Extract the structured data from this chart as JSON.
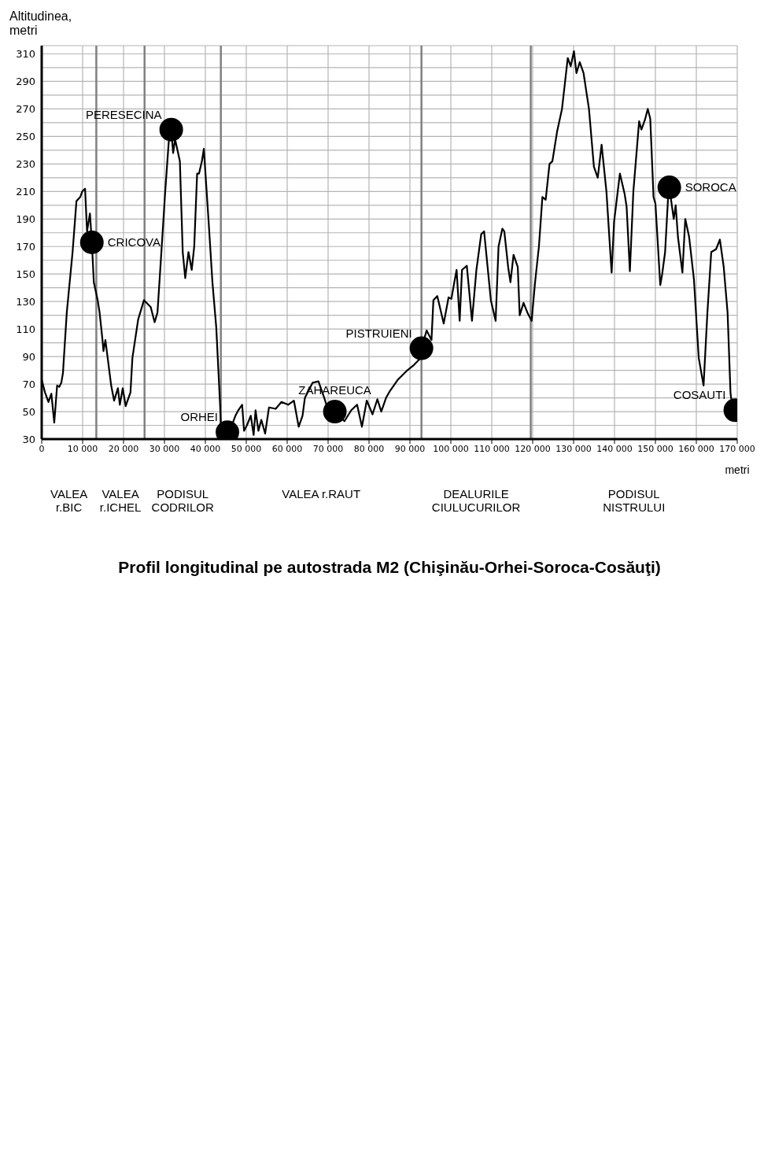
{
  "chart_data": {
    "type": "line",
    "title": "Profil longitudinal pe autostrada M2 (Chişinău-Orhei-Soroca-Cosăuţi)",
    "xlabel": "metri",
    "ylabel": "Altitudinea, metri",
    "xlim": [
      0,
      170000
    ],
    "xticks": [
      0,
      {
        "value": 10000,
        "label": "10 000"
      },
      {
        "value": 20000,
        "label": "20 000"
      },
      {
        "value": 30000,
        "label": "30 000"
      },
      {
        "value": 40000,
        "label": "40 000"
      },
      {
        "value": 50000,
        "label": "50 000"
      },
      {
        "value": 60000,
        "label": "60 000"
      },
      {
        "value": 70000,
        "label": "70 000"
      },
      {
        "value": 80000,
        "label": "80 000"
      },
      {
        "value": 90000,
        "label": "90 000"
      },
      {
        "value": 100000,
        "label": "100 000"
      },
      {
        "value": 110000,
        "label": "110 000"
      },
      {
        "value": 120000,
        "label": "120 000"
      },
      {
        "value": 130000,
        "label": "130 000"
      },
      {
        "value": 140000,
        "label": "140 000"
      },
      {
        "value": 150000,
        "label": "150 000"
      },
      {
        "value": 160000,
        "label": "160 000"
      },
      {
        "value": 170000,
        "label": "170 000"
      }
    ],
    "ylim": [
      30,
      316
    ],
    "yticks": [
      30,
      {
        "value": 40,
        "label": null
      },
      50,
      {
        "value": 60,
        "label": null
      },
      70,
      {
        "value": 80,
        "label": null
      },
      90,
      {
        "value": 100,
        "label": null
      },
      110,
      {
        "value": 120,
        "label": null
      },
      130,
      {
        "value": 140,
        "label": null
      },
      150,
      {
        "value": 160,
        "label": null
      },
      170,
      {
        "value": 180,
        "label": null
      },
      190,
      {
        "value": 200,
        "label": null
      },
      210,
      {
        "value": 220,
        "label": null
      },
      230,
      {
        "value": 240,
        "label": null
      },
      250,
      {
        "value": 260,
        "label": null
      },
      270,
      {
        "value": 280,
        "label": null
      },
      290,
      {
        "value": 300,
        "label": null
      },
      310
    ],
    "grid": true,
    "marker": "none",
    "line_style": "solid",
    "series": [
      {
        "color": "#000000",
        "x": [
          0,
          800,
          1650,
          2360,
          3070,
          3770,
          4300,
          4800,
          5190,
          6130,
          7550,
          8490,
          9430,
          9900,
          10600,
          11080,
          11790,
          12260,
          12740,
          13680,
          14150,
          14860,
          15100,
          15570,
          16980,
          17690,
          18630,
          19100,
          19810,
          20520,
          21700,
          22170,
          23580,
          25000,
          26650,
          27600,
          28300,
          29250,
          30190,
          31050,
          31660,
          32130,
          32600,
          33770,
          34470,
          35080,
          35880,
          36670,
          37280,
          37990,
          38450,
          39160,
          39630,
          40800,
          41730,
          42670,
          43600,
          43840,
          45390,
          45950,
          47350,
          48060,
          48990,
          49460,
          50160,
          51100,
          51800,
          52270,
          52970,
          53680,
          54610,
          55550,
          57190,
          58600,
          60230,
          61640,
          62810,
          63750,
          64330,
          66220,
          67640,
          69060,
          70000,
          71650,
          74000,
          75670,
          77090,
          78270,
          79450,
          80860,
          82050,
          82990,
          84170,
          85120,
          87000,
          89370,
          91020,
          92670,
          92820,
          94090,
          95270,
          95740,
          96690,
          98260,
          99440,
          100140,
          100850,
          101410,
          102160,
          102730,
          103900,
          105170,
          106250,
          107430,
          108130,
          109780,
          110950,
          111660,
          112600,
          113070,
          114010,
          114570,
          115330,
          116360,
          116830,
          117770,
          118710,
          119750,
          120590,
          121530,
          122380,
          123180,
          124120,
          124820,
          126000,
          127170,
          128580,
          129290,
          130090,
          130700,
          131500,
          132440,
          133760,
          134970,
          135910,
          136850,
          138030,
          138970,
          139300,
          139900,
          141320,
          142490,
          142960,
          143760,
          144610,
          146020,
          146580,
          147430,
          148130,
          148740,
          149540,
          150010,
          151190,
          151660,
          152370,
          153070,
          153400,
          154480,
          154950,
          155510,
          156600,
          157300,
          158240,
          159420,
          160590,
          161770,
          162710,
          163650,
          164820,
          165760,
          166700,
          167640,
          168350,
          168490,
          169530
        ],
        "values": [
          73,
          64,
          57,
          63,
          42,
          69,
          68,
          71,
          78,
          122,
          166,
          203,
          206,
          210,
          212,
          181,
          194,
          173,
          144,
          131,
          122,
          102,
          94,
          102,
          69,
          58,
          67,
          55,
          67,
          54,
          64,
          89,
          117,
          131,
          126,
          115,
          122,
          166,
          210,
          246,
          255,
          238,
          248,
          232,
          166,
          147,
          166,
          153,
          170,
          223,
          223,
          232,
          241,
          188,
          144,
          111,
          55,
          36,
          35,
          36,
          47,
          51,
          55,
          36,
          40,
          47,
          33,
          51,
          36,
          44,
          34,
          53,
          52,
          57,
          55,
          58,
          39,
          47,
          60,
          71,
          72,
          60,
          51,
          50,
          43,
          51,
          55,
          39,
          58,
          48,
          59,
          50,
          60,
          65,
          73,
          80,
          84,
          89,
          96,
          109,
          102,
          131,
          134,
          114,
          133,
          132,
          144,
          153,
          116,
          153,
          156,
          116,
          153,
          179,
          181,
          131,
          116,
          170,
          183,
          181,
          155,
          144,
          164,
          155,
          120,
          129,
          122,
          116,
          144,
          170,
          206,
          204,
          230,
          232,
          254,
          270,
          307,
          301,
          312,
          296,
          304,
          296,
          270,
          228,
          220,
          244,
          210,
          166,
          151,
          188,
          223,
          208,
          199,
          152,
          210,
          261,
          255,
          262,
          270,
          263,
          206,
          201,
          142,
          150,
          166,
          204,
          213,
          190,
          200,
          177,
          151,
          190,
          177,
          146,
          89,
          69,
          122,
          166,
          168,
          175,
          155,
          122,
          64,
          60,
          51
        ]
      },
      {
        "type": "scatter",
        "color": "#000000",
        "marker": "circle",
        "x": [
          12260,
          31660,
          45390,
          71650,
          92820,
          153400,
          169530
        ],
        "values": [
          173,
          255,
          35,
          50,
          96,
          213,
          51
        ]
      }
    ],
    "ref_lines": [
      {
        "axis": "x",
        "value": 13350,
        "color": "#808080"
      },
      {
        "axis": "x",
        "value": 25140,
        "color": "#808080"
      },
      {
        "axis": "x",
        "value": 43790,
        "color": "#808080"
      },
      {
        "axis": "x",
        "value": 92820,
        "color": "#808080"
      },
      {
        "axis": "x",
        "value": 119530,
        "color": "#808080"
      }
    ],
    "annotations": [
      {
        "text": "CRICOVA",
        "x": 12260,
        "y": 173
      },
      {
        "text": "PERESECINA",
        "x": 31660,
        "y": 255
      },
      {
        "text": "ORHEI",
        "x": 45390,
        "y": 35
      },
      {
        "text": "ZAHAREUCA",
        "x": 71650,
        "y": 50
      },
      {
        "text": "PISTRUIENI",
        "x": 92820,
        "y": 96
      },
      {
        "text": "SOROCA",
        "x": 153400,
        "y": 213
      },
      {
        "text": "COSAUTI",
        "x": 169530,
        "y": 51
      },
      "VALEA\nr.BIC",
      "VALEA\nr.ICHEL",
      "PODISUL\nCODRILOR",
      "VALEA r.RAUT",
      "DEALURILE\nCIULUCURILOR",
      "PODISUL\nNISTRULUI"
    ]
  }
}
